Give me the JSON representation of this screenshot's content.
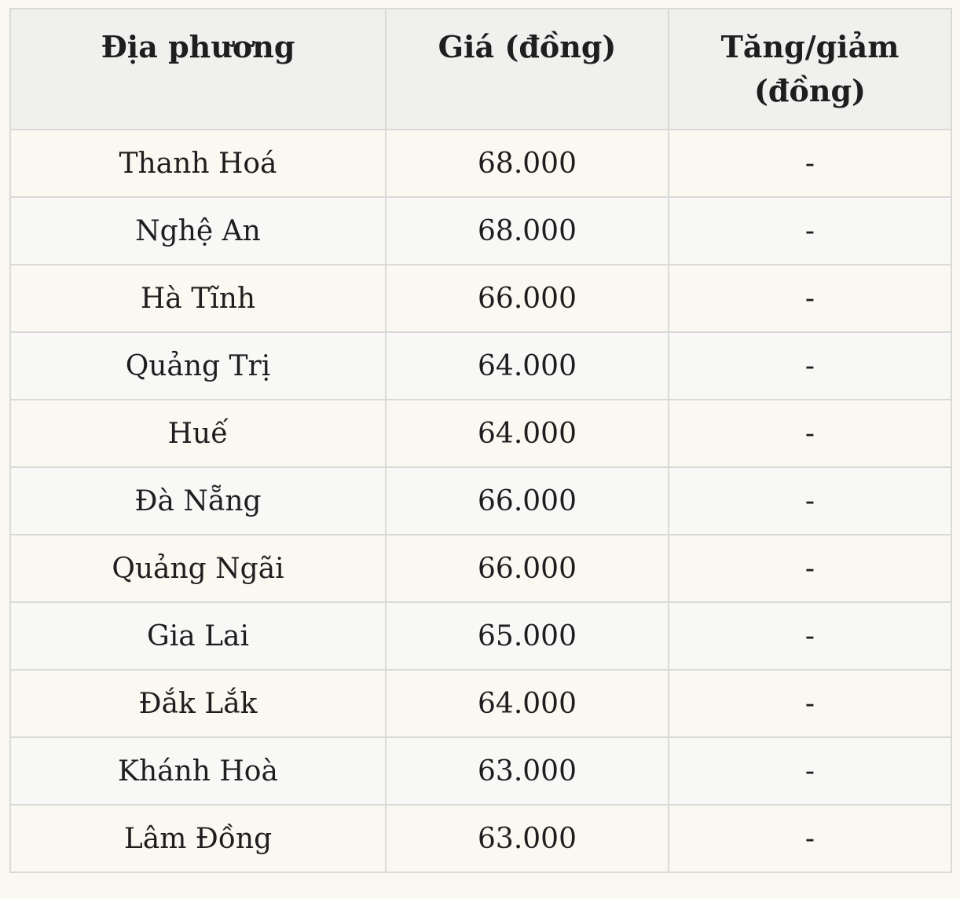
{
  "chart_data": {
    "type": "table",
    "columns": [
      "Địa phương",
      "Giá (đồng)",
      "Tăng/giảm (đồng)"
    ],
    "rows": [
      [
        "Thanh Hoá",
        "68.000",
        "-"
      ],
      [
        "Nghệ An",
        "68.000",
        "-"
      ],
      [
        "Hà Tĩnh",
        "66.000",
        "-"
      ],
      [
        "Quảng Trị",
        "64.000",
        "-"
      ],
      [
        "Huế",
        "64.000",
        "-"
      ],
      [
        "Đà Nẵng",
        "66.000",
        "-"
      ],
      [
        "Quảng Ngãi",
        "66.000",
        "-"
      ],
      [
        "Gia Lai",
        "65.000",
        "-"
      ],
      [
        "Đắk Lắk",
        "64.000",
        "-"
      ],
      [
        "Khánh Hoà",
        "63.000",
        "-"
      ],
      [
        "Lâm Đồng",
        "63.000",
        "-"
      ]
    ],
    "layout": {
      "unit_note": "prices shown in Vietnamese đồng, thousands separator as dot",
      "legend": "none",
      "grid": "full cell borders"
    }
  },
  "colors": {
    "page_background": "#faf8f1",
    "header_background": "#f0f0ee",
    "row_odd_background": "#faf8f1",
    "row_even_background": "#f8f8f7",
    "border": "#d9d9d7",
    "text": "#1e1e1e"
  }
}
